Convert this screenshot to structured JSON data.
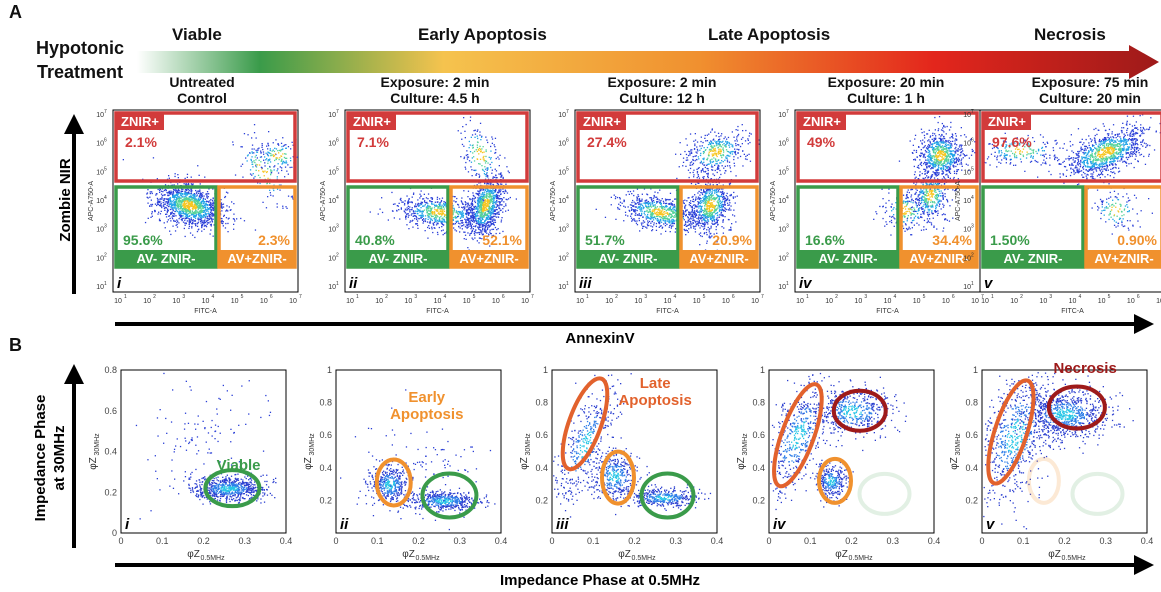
{
  "panel_letters": {
    "a": "A",
    "b": "B"
  },
  "treatment_label": {
    "line1": "Hypotonic",
    "line2": "Treatment"
  },
  "stages": [
    {
      "label": "Viable",
      "color": "#3a9b4a"
    },
    {
      "label": "Early Apoptosis",
      "color": "#f0912e"
    },
    {
      "label": "Late Apoptosis",
      "color": "#e9522a"
    },
    {
      "label": "Necrosis",
      "color": "#9e1a1a"
    }
  ],
  "conditions": [
    {
      "line1": "Untreated",
      "line2": "Control"
    },
    {
      "line1": "Exposure: 2 min",
      "line2": "Culture: 4.5 h"
    },
    {
      "line1": "Exposure: 2 min",
      "line2": "Culture: 12 h"
    },
    {
      "line1": "Exposure: 20 min",
      "line2": "Culture: 1 h"
    },
    {
      "line1": "Exposure: 75 min",
      "line2": "Culture: 20 min"
    }
  ],
  "flow": {
    "y_axis_title": "Zombie NIR",
    "x_axis_title": "AnnexinV",
    "panel_ylabel": "APC-A750-A",
    "panel_xlabel": "FITC-A",
    "gate_labels": {
      "znir": "ZNIR+",
      "av_neg": "AV- ZNIR-",
      "av_pos": "AV+ZNIR-"
    },
    "tick_base": "10",
    "tick_exponents": [
      "1",
      "2",
      "3",
      "4",
      "5",
      "6",
      "7"
    ],
    "panels": [
      {
        "roman": "i",
        "znir": "2.1%",
        "av_neg": "95.6%",
        "av_pos": "2.3%"
      },
      {
        "roman": "ii",
        "znir": "7.1%",
        "av_neg": "40.8%",
        "av_pos": "52.1%"
      },
      {
        "roman": "iii",
        "znir": "27.4%",
        "av_neg": "51.7%",
        "av_pos": "20.9%"
      },
      {
        "roman": "iv",
        "znir": "49%",
        "av_neg": "16.6%",
        "av_pos": "34.4%"
      },
      {
        "roman": "v",
        "znir": "97.6%",
        "av_neg": "1.50%",
        "av_pos": "0.90%"
      }
    ]
  },
  "impedance": {
    "y_axis_title": {
      "line1": "Impedance Phase",
      "line2": "at 30MHz"
    },
    "x_axis_title": "Impedance Phase at 0.5MHz",
    "panel_ylabel": {
      "main": "φZ",
      "sub": "30MHz"
    },
    "panel_xlabel": {
      "main": "φZ",
      "sub": "0.5MHz"
    },
    "x_ticks": [
      "0",
      "0.1",
      "0.2",
      "0.3",
      "0.4"
    ],
    "y_ticks_first": [
      "0",
      "0.2",
      "0.4",
      "0.6",
      "0.8"
    ],
    "y_ticks_rest": [
      "0.2",
      "0.4",
      "0.6",
      "0.8",
      "1"
    ],
    "annotations": {
      "viable": "Viable",
      "early": "Early\nApoptosis",
      "late": "Late\nApoptosis",
      "necrosis": "Necrosis"
    },
    "panels": [
      {
        "roman": "i"
      },
      {
        "roman": "ii"
      },
      {
        "roman": "iii"
      },
      {
        "roman": "iv"
      },
      {
        "roman": "v"
      }
    ]
  },
  "colors": {
    "green": "#3a9b4a",
    "orange": "#f0912e",
    "red": "#d23b3b",
    "darkred": "#9e1a1a",
    "deep_orange": "#e2622d"
  }
}
